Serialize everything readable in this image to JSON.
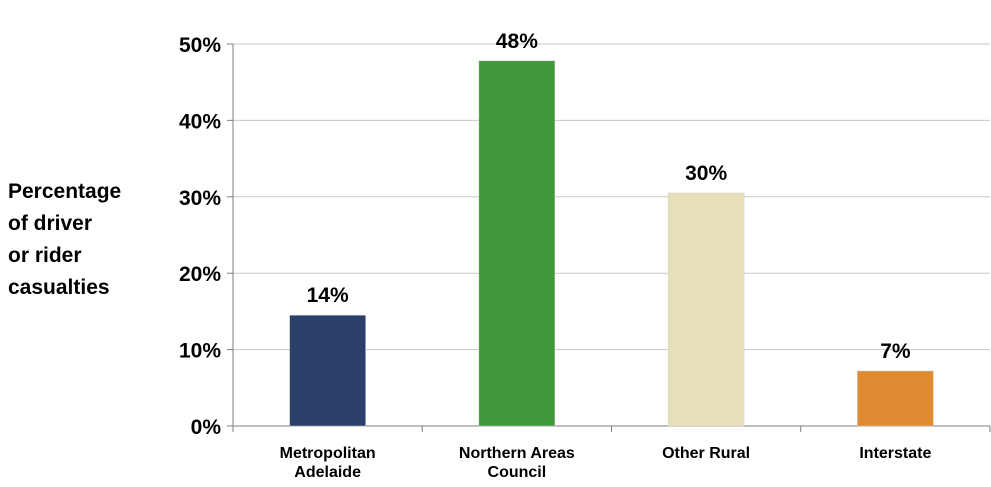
{
  "chart_data": {
    "type": "bar",
    "title": "",
    "xlabel": "",
    "ylabel_lines": [
      "Percentage",
      "of driver",
      "or rider",
      "casualties"
    ],
    "ylim": [
      0,
      50
    ],
    "yticks": [
      0,
      10,
      20,
      30,
      40,
      50
    ],
    "ytick_labels": [
      "0%",
      "10%",
      "20%",
      "30%",
      "40%",
      "50%"
    ],
    "grid": true,
    "legend": "none",
    "categories": [
      [
        "Metropolitan",
        "Adelaide"
      ],
      [
        "Northern Areas",
        "Council"
      ],
      [
        "Other Rural"
      ],
      [
        "Interstate"
      ]
    ],
    "values": [
      14.5,
      47.8,
      30.5,
      7.2
    ],
    "data_labels": [
      "14%",
      "48%",
      "30%",
      "7%"
    ],
    "colors": [
      "#2b3f6b",
      "#3f993a",
      "#e8e0b8",
      "#e08a32"
    ]
  }
}
